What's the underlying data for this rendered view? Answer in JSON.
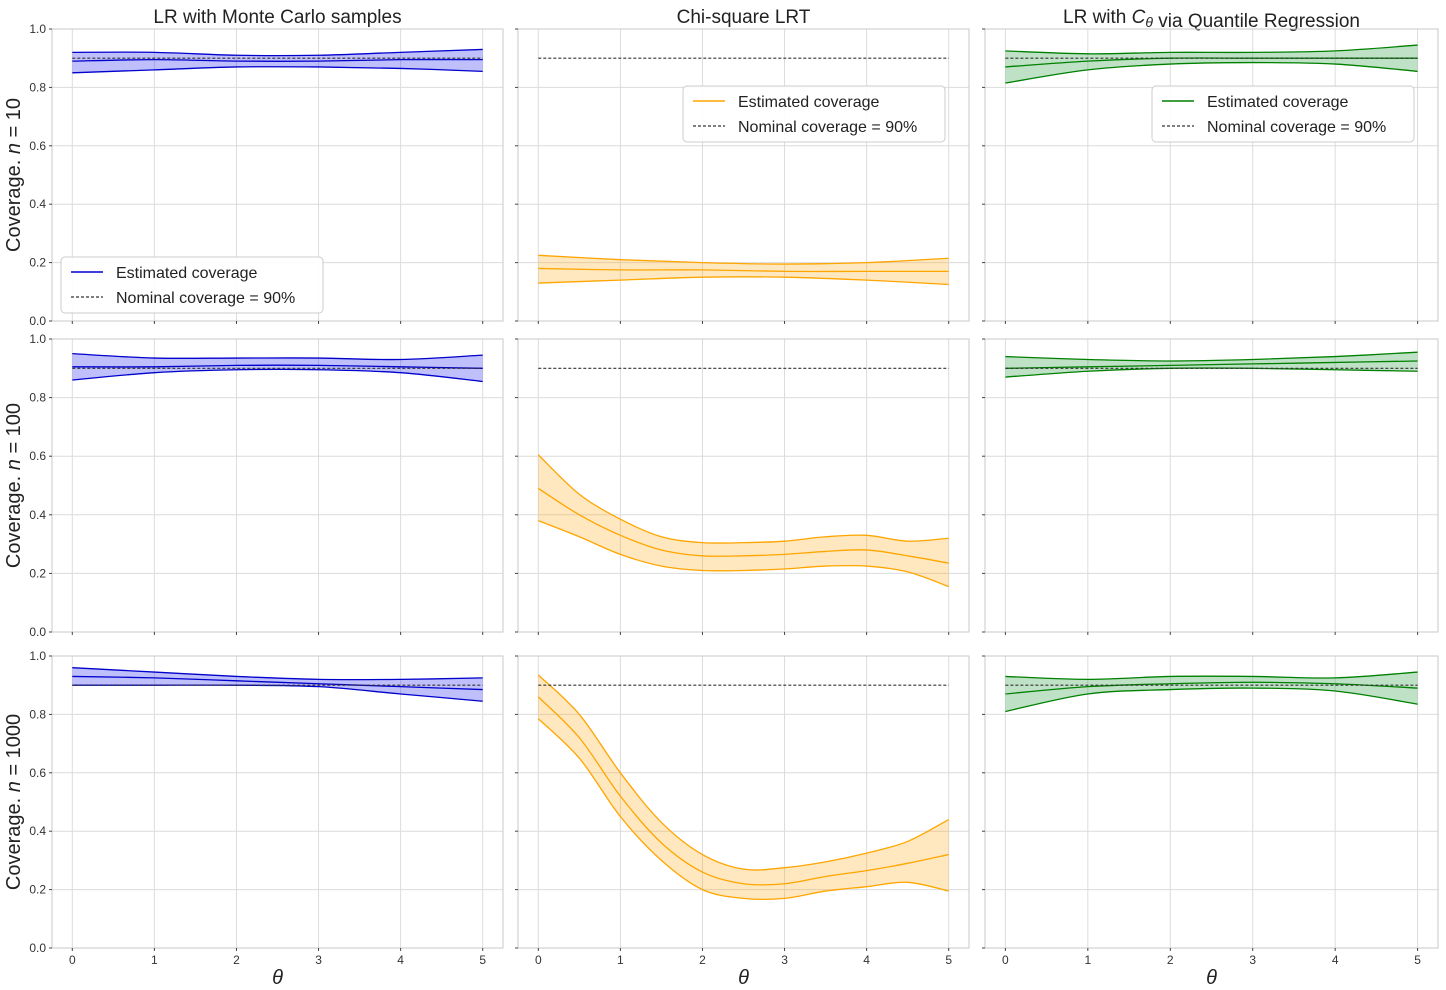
{
  "figure": {
    "columns": [
      {
        "title_parts": [
          {
            "t": "LR with Monte Carlo samples"
          }
        ],
        "color": "#0000cc",
        "fill": "#0000ee",
        "x_label": "θ"
      },
      {
        "title_parts": [
          {
            "t": "Chi-square LRT"
          }
        ],
        "color": "#ffa500",
        "fill": "#ffa500",
        "x_label": "θ"
      },
      {
        "title_parts": [
          {
            "t": "LR with "
          },
          {
            "t": "C",
            "style": "italic"
          },
          {
            "t": "θ",
            "style": "sub"
          },
          {
            "t": " via Quantile Regression"
          }
        ],
        "color": "#008000",
        "fill": "#008a1e",
        "x_label": "θ"
      }
    ],
    "rows": [
      {
        "label_prefix": "Coverage. ",
        "label_var": "n",
        "label_suffix": " = 10"
      },
      {
        "label_prefix": "Coverage. ",
        "label_var": "n",
        "label_suffix": " = 100"
      },
      {
        "label_prefix": "Coverage. ",
        "label_var": "n",
        "label_suffix": " = 1000"
      }
    ],
    "legend": {
      "estimated": "Estimated coverage",
      "nominal": "Nominal coverage = 90%"
    },
    "x_ticks": [
      "0",
      "1",
      "2",
      "3",
      "4",
      "5"
    ],
    "y_ticks": [
      "0.0",
      "0.2",
      "0.4",
      "0.6",
      "0.8",
      "1.0"
    ]
  },
  "chart_data": [
    {
      "type": "area",
      "row": 0,
      "col": 0,
      "title": "LR with Monte Carlo samples",
      "ylabel": "Coverage. n = 10",
      "xlabel": "",
      "xlim": [
        0,
        5
      ],
      "ylim": [
        0,
        1
      ],
      "nominal": 0.9,
      "legend": "lower-left",
      "x": [
        0,
        1,
        2,
        3,
        4,
        5
      ],
      "estimate": [
        0.89,
        0.895,
        0.89,
        0.89,
        0.895,
        0.895
      ],
      "lower": [
        0.85,
        0.86,
        0.87,
        0.87,
        0.865,
        0.855
      ],
      "upper": [
        0.92,
        0.92,
        0.91,
        0.91,
        0.92,
        0.93
      ]
    },
    {
      "type": "area",
      "row": 0,
      "col": 1,
      "title": "Chi-square LRT",
      "ylabel": "",
      "xlabel": "",
      "xlim": [
        0,
        5
      ],
      "ylim": [
        0,
        1
      ],
      "nominal": 0.9,
      "legend": "upper-right",
      "x": [
        0,
        1,
        2,
        3,
        4,
        5
      ],
      "estimate": [
        0.18,
        0.175,
        0.175,
        0.17,
        0.17,
        0.17
      ],
      "lower": [
        0.13,
        0.14,
        0.15,
        0.15,
        0.14,
        0.125
      ],
      "upper": [
        0.225,
        0.21,
        0.2,
        0.195,
        0.2,
        0.215
      ]
    },
    {
      "type": "area",
      "row": 0,
      "col": 2,
      "title": "LR with Cθ via Quantile Regression",
      "ylabel": "",
      "xlabel": "",
      "xlim": [
        0,
        5
      ],
      "ylim": [
        0,
        1
      ],
      "nominal": 0.9,
      "legend": "upper-right",
      "x": [
        0,
        1,
        2,
        3,
        4,
        5
      ],
      "estimate": [
        0.87,
        0.89,
        0.9,
        0.9,
        0.9,
        0.9
      ],
      "lower": [
        0.815,
        0.86,
        0.88,
        0.885,
        0.88,
        0.855
      ],
      "upper": [
        0.925,
        0.915,
        0.92,
        0.92,
        0.925,
        0.945
      ]
    },
    {
      "type": "area",
      "row": 1,
      "col": 0,
      "title": "",
      "ylabel": "Coverage. n = 100",
      "xlabel": "",
      "xlim": [
        0,
        5
      ],
      "ylim": [
        0,
        1
      ],
      "nominal": 0.9,
      "legend": "none",
      "x": [
        0,
        1,
        2,
        3,
        4,
        5
      ],
      "estimate": [
        0.905,
        0.905,
        0.91,
        0.91,
        0.905,
        0.9
      ],
      "lower": [
        0.86,
        0.885,
        0.895,
        0.895,
        0.885,
        0.855
      ],
      "upper": [
        0.95,
        0.935,
        0.935,
        0.935,
        0.93,
        0.945
      ]
    },
    {
      "type": "area",
      "row": 1,
      "col": 1,
      "title": "",
      "ylabel": "",
      "xlabel": "",
      "xlim": [
        0,
        5
      ],
      "ylim": [
        0,
        1
      ],
      "nominal": 0.9,
      "legend": "none",
      "x": [
        0,
        0.5,
        1,
        1.5,
        2,
        2.5,
        3,
        3.5,
        4,
        4.5,
        5
      ],
      "estimate": [
        0.49,
        0.4,
        0.33,
        0.28,
        0.26,
        0.26,
        0.265,
        0.275,
        0.28,
        0.26,
        0.235
      ],
      "lower": [
        0.38,
        0.325,
        0.265,
        0.225,
        0.21,
        0.21,
        0.215,
        0.225,
        0.225,
        0.205,
        0.155
      ],
      "upper": [
        0.605,
        0.47,
        0.385,
        0.325,
        0.305,
        0.305,
        0.31,
        0.325,
        0.33,
        0.31,
        0.32
      ]
    },
    {
      "type": "area",
      "row": 1,
      "col": 2,
      "title": "",
      "ylabel": "",
      "xlabel": "",
      "xlim": [
        0,
        5
      ],
      "ylim": [
        0,
        1
      ],
      "nominal": 0.9,
      "legend": "none",
      "x": [
        0,
        1,
        2,
        3,
        4,
        5
      ],
      "estimate": [
        0.9,
        0.905,
        0.91,
        0.915,
        0.92,
        0.925
      ],
      "lower": [
        0.87,
        0.89,
        0.9,
        0.9,
        0.895,
        0.89
      ],
      "upper": [
        0.94,
        0.93,
        0.925,
        0.93,
        0.94,
        0.955
      ]
    },
    {
      "type": "area",
      "row": 2,
      "col": 0,
      "title": "",
      "ylabel": "Coverage. n = 1000",
      "xlabel": "θ",
      "xlim": [
        0,
        5
      ],
      "ylim": [
        0,
        1
      ],
      "nominal": 0.9,
      "legend": "none",
      "x": [
        0,
        1,
        2,
        3,
        4,
        5
      ],
      "estimate": [
        0.93,
        0.925,
        0.915,
        0.905,
        0.895,
        0.885
      ],
      "lower": [
        0.9,
        0.9,
        0.9,
        0.895,
        0.87,
        0.845
      ],
      "upper": [
        0.96,
        0.945,
        0.93,
        0.92,
        0.92,
        0.925
      ]
    },
    {
      "type": "area",
      "row": 2,
      "col": 1,
      "title": "",
      "ylabel": "",
      "xlabel": "θ",
      "xlim": [
        0,
        5
      ],
      "ylim": [
        0,
        1
      ],
      "nominal": 0.9,
      "legend": "none",
      "x": [
        0,
        0.5,
        1,
        1.5,
        2,
        2.5,
        3,
        3.5,
        4,
        4.5,
        5
      ],
      "estimate": [
        0.86,
        0.72,
        0.52,
        0.36,
        0.26,
        0.22,
        0.22,
        0.245,
        0.265,
        0.29,
        0.32
      ],
      "lower": [
        0.785,
        0.65,
        0.45,
        0.3,
        0.2,
        0.17,
        0.17,
        0.195,
        0.21,
        0.225,
        0.195
      ],
      "upper": [
        0.935,
        0.8,
        0.6,
        0.43,
        0.32,
        0.27,
        0.275,
        0.295,
        0.325,
        0.365,
        0.44
      ]
    },
    {
      "type": "area",
      "row": 2,
      "col": 2,
      "title": "",
      "ylabel": "",
      "xlabel": "θ",
      "xlim": [
        0,
        5
      ],
      "ylim": [
        0,
        1
      ],
      "nominal": 0.9,
      "legend": "none",
      "x": [
        0,
        1,
        2,
        3,
        4,
        5
      ],
      "estimate": [
        0.87,
        0.895,
        0.905,
        0.91,
        0.905,
        0.89
      ],
      "lower": [
        0.81,
        0.87,
        0.885,
        0.89,
        0.88,
        0.835
      ],
      "upper": [
        0.93,
        0.92,
        0.93,
        0.93,
        0.925,
        0.945
      ]
    }
  ]
}
